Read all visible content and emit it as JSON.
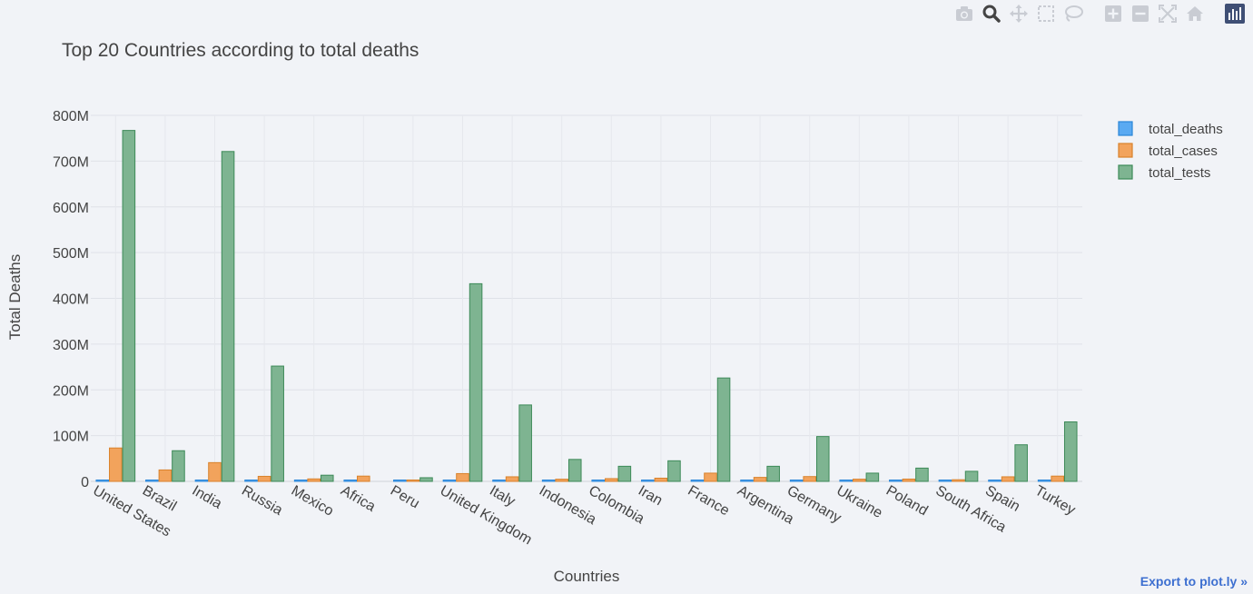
{
  "chart_data": {
    "type": "bar",
    "title": "Top 20 Countries according to total deaths",
    "xlabel": "Countries",
    "ylabel": "Total Deaths",
    "ylim": [
      0,
      800000000
    ],
    "yticks": [
      0,
      100000000,
      200000000,
      300000000,
      400000000,
      500000000,
      600000000,
      700000000,
      800000000
    ],
    "ytick_labels": [
      "0",
      "100M",
      "200M",
      "300M",
      "400M",
      "500M",
      "600M",
      "700M",
      "800M"
    ],
    "grid": true,
    "legend_position": "top-right",
    "categories": [
      "United States",
      "Brazil",
      "India",
      "Russia",
      "Mexico",
      "Africa",
      "Peru",
      "United Kingdom",
      "Italy",
      "Indonesia",
      "Colombia",
      "Iran",
      "France",
      "Argentina",
      "Germany",
      "Ukraine",
      "Poland",
      "South Africa",
      "Spain",
      "Turkey"
    ],
    "series": [
      {
        "name": "total_deaths",
        "color": "#5aaaf2",
        "edge": "#2a86d8",
        "values": [
          800000,
          490000,
          410000,
          270000,
          230000,
          200000,
          200000,
          160000,
          120000,
          120000,
          120000,
          120000,
          120000,
          100000,
          100000,
          100000,
          100000,
          90000,
          90000,
          80000
        ]
      },
      {
        "name": "total_cases",
        "color": "#f2a35c",
        "edge": "#d9822b",
        "values": [
          73000000,
          25000000,
          41000000,
          11000000,
          5400000,
          11500000,
          3000000,
          17000000,
          10000000,
          4700000,
          6000000,
          7000000,
          18000000,
          8700000,
          10500000,
          4800000,
          5000000,
          3600000,
          10000000,
          11500000
        ]
      },
      {
        "name": "total_tests",
        "color": "#7eb491",
        "edge": "#3d8a58",
        "values": [
          767000000,
          67000000,
          721000000,
          252000000,
          13500000,
          0,
          8000000,
          432000000,
          167000000,
          48000000,
          33000000,
          45000000,
          226000000,
          33000000,
          98000000,
          18000000,
          29000000,
          22000000,
          80000000,
          130000000
        ]
      }
    ]
  },
  "modebar": {
    "icons": [
      "camera-icon",
      "zoom-icon",
      "pan-icon",
      "box-select-icon",
      "lasso-select-icon",
      "zoom-in-icon",
      "zoom-out-icon",
      "autoscale-icon",
      "reset-axes-icon",
      "plotly-logo-icon"
    ]
  },
  "export_link": "Export to plot.ly »"
}
